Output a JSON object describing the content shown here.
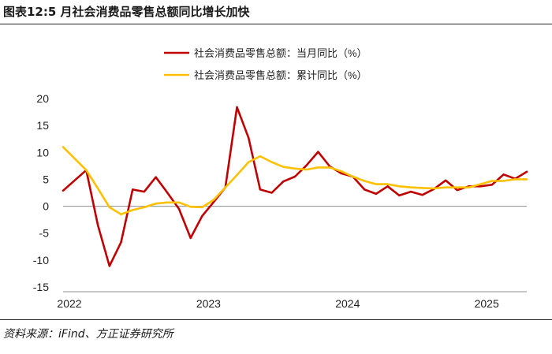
{
  "figure": {
    "title": "图表12:5 月社会消费品零售总额同比增长加快",
    "source": "资料来源：iFind、方正证券研究所"
  },
  "chart_data": {
    "type": "line",
    "title": "图表12:5 月社会消费品零售总额同比增长加快",
    "xlabel": "",
    "ylabel": "",
    "ylim": [
      -15,
      20
    ],
    "yticks": [
      -15,
      -10,
      -5,
      0,
      5,
      10,
      15,
      20
    ],
    "ytick_labels": [
      "-15",
      "-10",
      "-5",
      "0",
      "5",
      "10",
      "15",
      "20"
    ],
    "x_tick_labels": [
      "2022",
      "2023",
      "2024",
      "2025"
    ],
    "x_tick_positions": [
      0,
      12,
      24,
      36
    ],
    "xlim": [
      0,
      40
    ],
    "grid": false,
    "legend_position": "top-center",
    "series": [
      {
        "name": "社会消费品零售总额：当月同比（%）",
        "color": "#C00000",
        "x": [
          0,
          2,
          3,
          4,
          5,
          6,
          7,
          8,
          9,
          10,
          11,
          12,
          13,
          14,
          15,
          16,
          17,
          18,
          19,
          20,
          21,
          22,
          23,
          24,
          25,
          26,
          27,
          28,
          29,
          30,
          31,
          32,
          33,
          34,
          35,
          36,
          37,
          38,
          39,
          40
        ],
        "values": [
          2.9,
          6.7,
          -3.5,
          -11.1,
          -6.7,
          3.1,
          2.7,
          5.4,
          2.5,
          -0.5,
          -5.9,
          -1.8,
          0.8,
          3.5,
          18.4,
          12.7,
          3.1,
          2.5,
          4.6,
          5.5,
          7.6,
          10.1,
          7.4,
          6.1,
          5.5,
          3.1,
          2.3,
          3.7,
          2.0,
          2.7,
          2.1,
          3.2,
          4.8,
          3.0,
          3.7,
          3.7,
          4.0,
          5.9,
          5.1,
          6.4
        ]
      },
      {
        "name": "社会消费品零售总额：累计同比（%）",
        "color": "#FFC000",
        "x": [
          0,
          2,
          3,
          4,
          5,
          6,
          7,
          8,
          9,
          10,
          11,
          12,
          13,
          14,
          15,
          16,
          17,
          18,
          19,
          20,
          21,
          22,
          23,
          24,
          25,
          26,
          27,
          28,
          29,
          30,
          31,
          32,
          33,
          34,
          35,
          36,
          37,
          38,
          39,
          40
        ],
        "values": [
          11.0,
          6.7,
          3.3,
          -0.2,
          -1.5,
          -0.7,
          -0.2,
          0.5,
          0.7,
          0.7,
          -0.1,
          -0.2,
          1.2,
          3.5,
          5.8,
          8.2,
          9.3,
          8.2,
          7.3,
          7.0,
          6.8,
          7.2,
          7.2,
          6.5,
          5.5,
          4.7,
          4.1,
          4.1,
          3.7,
          3.5,
          3.4,
          3.3,
          3.5,
          3.5,
          3.5,
          4.1,
          4.7,
          4.7,
          5.0,
          5.0
        ]
      }
    ]
  }
}
